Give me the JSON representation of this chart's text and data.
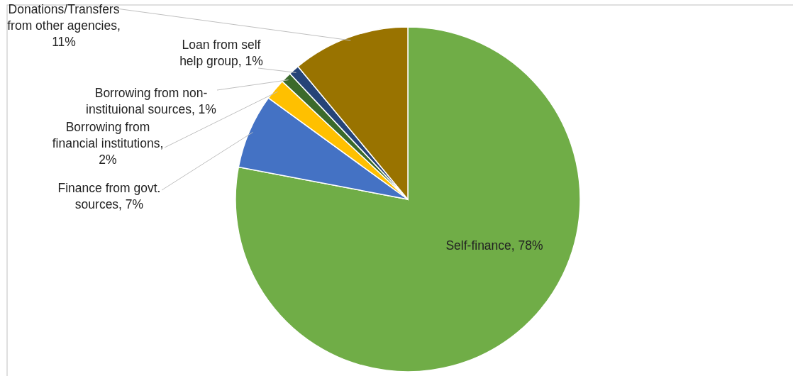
{
  "chart_data": {
    "type": "pie",
    "categories": [
      "Self-finance, 78%",
      "Finance from govt. sources, 7%",
      "Borrowing from financial institutions, 2%",
      "Borrowing from non-instituional sources, 1%",
      "Loan from self help group, 1%",
      "Donations/Transfers from other agencies, 11%"
    ],
    "values": [
      78,
      7,
      2,
      1,
      1,
      11
    ],
    "colors": [
      "#70ad47",
      "#4472c4",
      "#ffc000",
      "#3b6a2b",
      "#264478",
      "#997300"
    ]
  }
}
